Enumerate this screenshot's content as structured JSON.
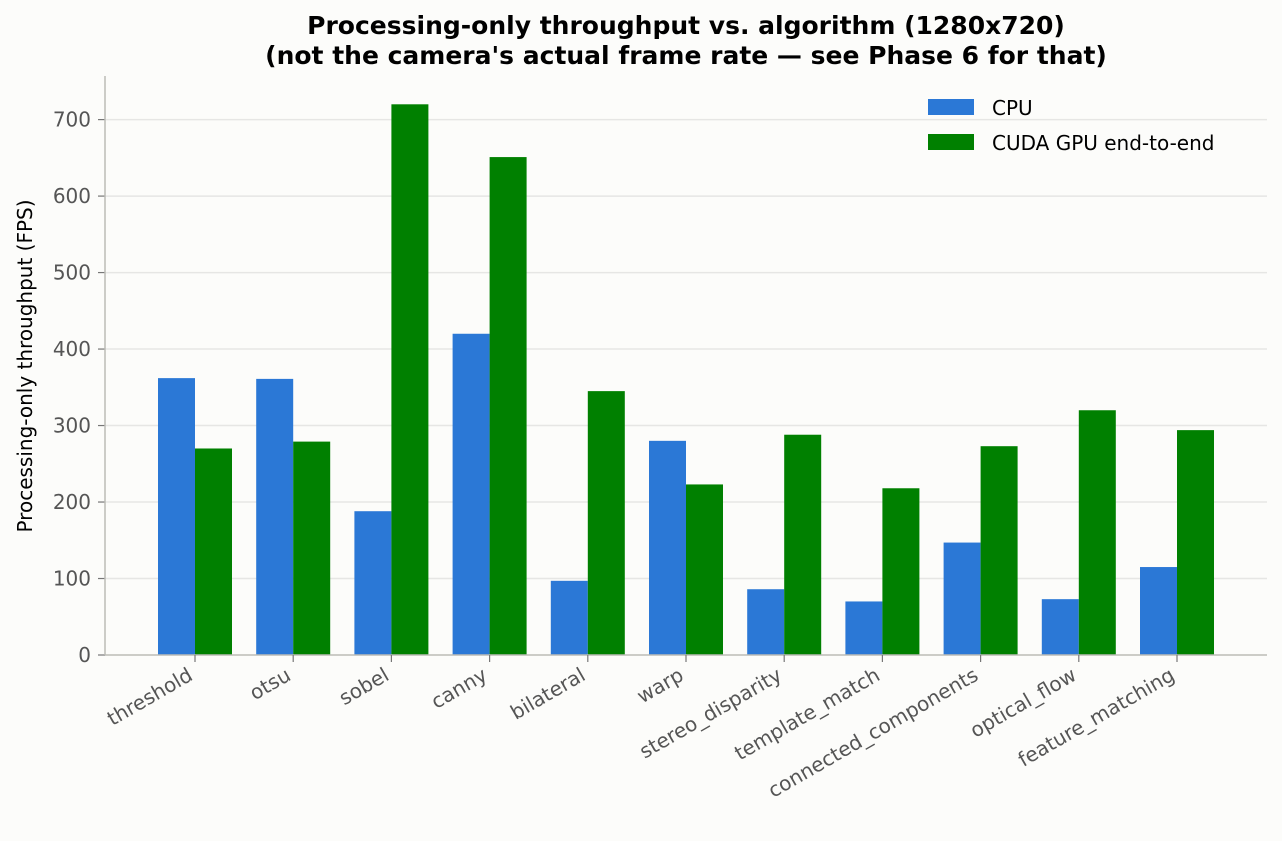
{
  "chart_data": {
    "type": "bar",
    "title": "Processing-only throughput vs. algorithm (1280x720)",
    "subtitle": "(not the camera's actual frame rate — see Phase 6 for that)",
    "xlabel": "",
    "ylabel": "Processing-only throughput (FPS)",
    "ylim": [
      0,
      757
    ],
    "yticks": [
      0,
      100,
      200,
      300,
      400,
      500,
      600,
      700
    ],
    "grid": "horizontal",
    "legend_position": "top-right",
    "categories": [
      "threshold",
      "otsu",
      "sobel",
      "canny",
      "bilateral",
      "warp",
      "stereo_disparity",
      "template_match",
      "connected_components",
      "optical_flow",
      "feature_matching"
    ],
    "series": [
      {
        "name": "CPU",
        "color": "#2b78d6",
        "values": [
          362,
          361,
          188,
          420,
          97,
          280,
          86,
          70,
          147,
          73,
          115
        ]
      },
      {
        "name": "CUDA GPU end-to-end",
        "color": "#008000",
        "values": [
          270,
          279,
          720,
          651,
          345,
          223,
          288,
          218,
          273,
          320,
          294
        ]
      }
    ]
  }
}
